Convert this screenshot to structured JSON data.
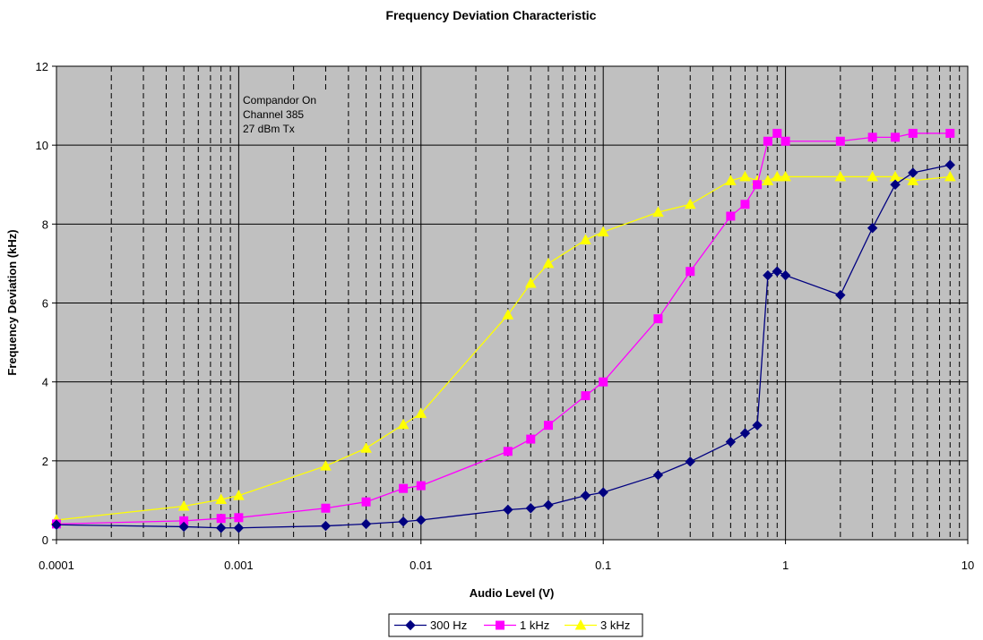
{
  "chart_data": {
    "type": "line",
    "title": "Frequency Deviation Characteristic",
    "xlabel": "Audio Level (V)",
    "ylabel": "Frequency Deviation (kHz)",
    "x_scale": "log",
    "xlim": [
      0.0001,
      10
    ],
    "ylim": [
      0,
      12
    ],
    "x_ticks": [
      0.0001,
      0.001,
      0.01,
      0.1,
      1,
      10
    ],
    "x_tick_labels": [
      "0.0001",
      "0.001",
      "0.01",
      "0.1",
      "1",
      "10"
    ],
    "y_ticks": [
      0,
      2,
      4,
      6,
      8,
      10,
      12
    ],
    "y_tick_labels": [
      "0",
      "2",
      "4",
      "6",
      "8",
      "10",
      "12"
    ],
    "grid": true,
    "plot_background": "#c0c0c0",
    "legend_position": "bottom-center",
    "annotations": [
      "Compandor On",
      "Channel 385",
      "27 dBm Tx"
    ],
    "series": [
      {
        "name": "300 Hz",
        "color": "#000080",
        "marker": "diamond",
        "x": [
          0.0001,
          0.0005,
          0.0008,
          0.001,
          0.003,
          0.005,
          0.008,
          0.01,
          0.03,
          0.04,
          0.05,
          0.08,
          0.1,
          0.2,
          0.3,
          0.5,
          0.6,
          0.7,
          0.8,
          0.9,
          1,
          2,
          3,
          4,
          5,
          8
        ],
        "y": [
          0.38,
          0.33,
          0.3,
          0.3,
          0.35,
          0.4,
          0.46,
          0.5,
          0.76,
          0.8,
          0.88,
          1.12,
          1.2,
          1.64,
          1.98,
          2.48,
          2.7,
          2.9,
          6.7,
          6.8,
          6.7,
          6.2,
          7.9,
          9.0,
          9.3,
          9.5
        ]
      },
      {
        "name": "1 kHz",
        "color": "#ff00ff",
        "marker": "square",
        "x": [
          0.0001,
          0.0005,
          0.0008,
          0.001,
          0.003,
          0.005,
          0.008,
          0.01,
          0.03,
          0.04,
          0.05,
          0.08,
          0.1,
          0.2,
          0.3,
          0.5,
          0.6,
          0.7,
          0.8,
          0.9,
          1,
          2,
          3,
          4,
          5,
          8
        ],
        "y": [
          0.4,
          0.48,
          0.54,
          0.56,
          0.8,
          0.96,
          1.3,
          1.37,
          2.24,
          2.55,
          2.9,
          3.65,
          4.0,
          5.6,
          6.8,
          8.2,
          8.5,
          9.0,
          10.1,
          10.3,
          10.1,
          10.1,
          10.2,
          10.2,
          10.3,
          10.3
        ]
      },
      {
        "name": "3 kHz",
        "color": "#ffff00",
        "marker": "triangle",
        "x": [
          0.0001,
          0.0005,
          0.0008,
          0.001,
          0.003,
          0.005,
          0.008,
          0.01,
          0.03,
          0.04,
          0.05,
          0.08,
          0.1,
          0.2,
          0.3,
          0.5,
          0.6,
          0.7,
          0.8,
          0.9,
          1,
          2,
          3,
          4,
          5,
          8
        ],
        "y": [
          0.5,
          0.85,
          1.02,
          1.12,
          1.87,
          2.32,
          2.92,
          3.2,
          5.7,
          6.5,
          7.0,
          7.6,
          7.8,
          8.3,
          8.5,
          9.1,
          9.2,
          9.1,
          9.1,
          9.2,
          9.2,
          9.2,
          9.2,
          9.2,
          9.1,
          9.2
        ]
      }
    ]
  }
}
